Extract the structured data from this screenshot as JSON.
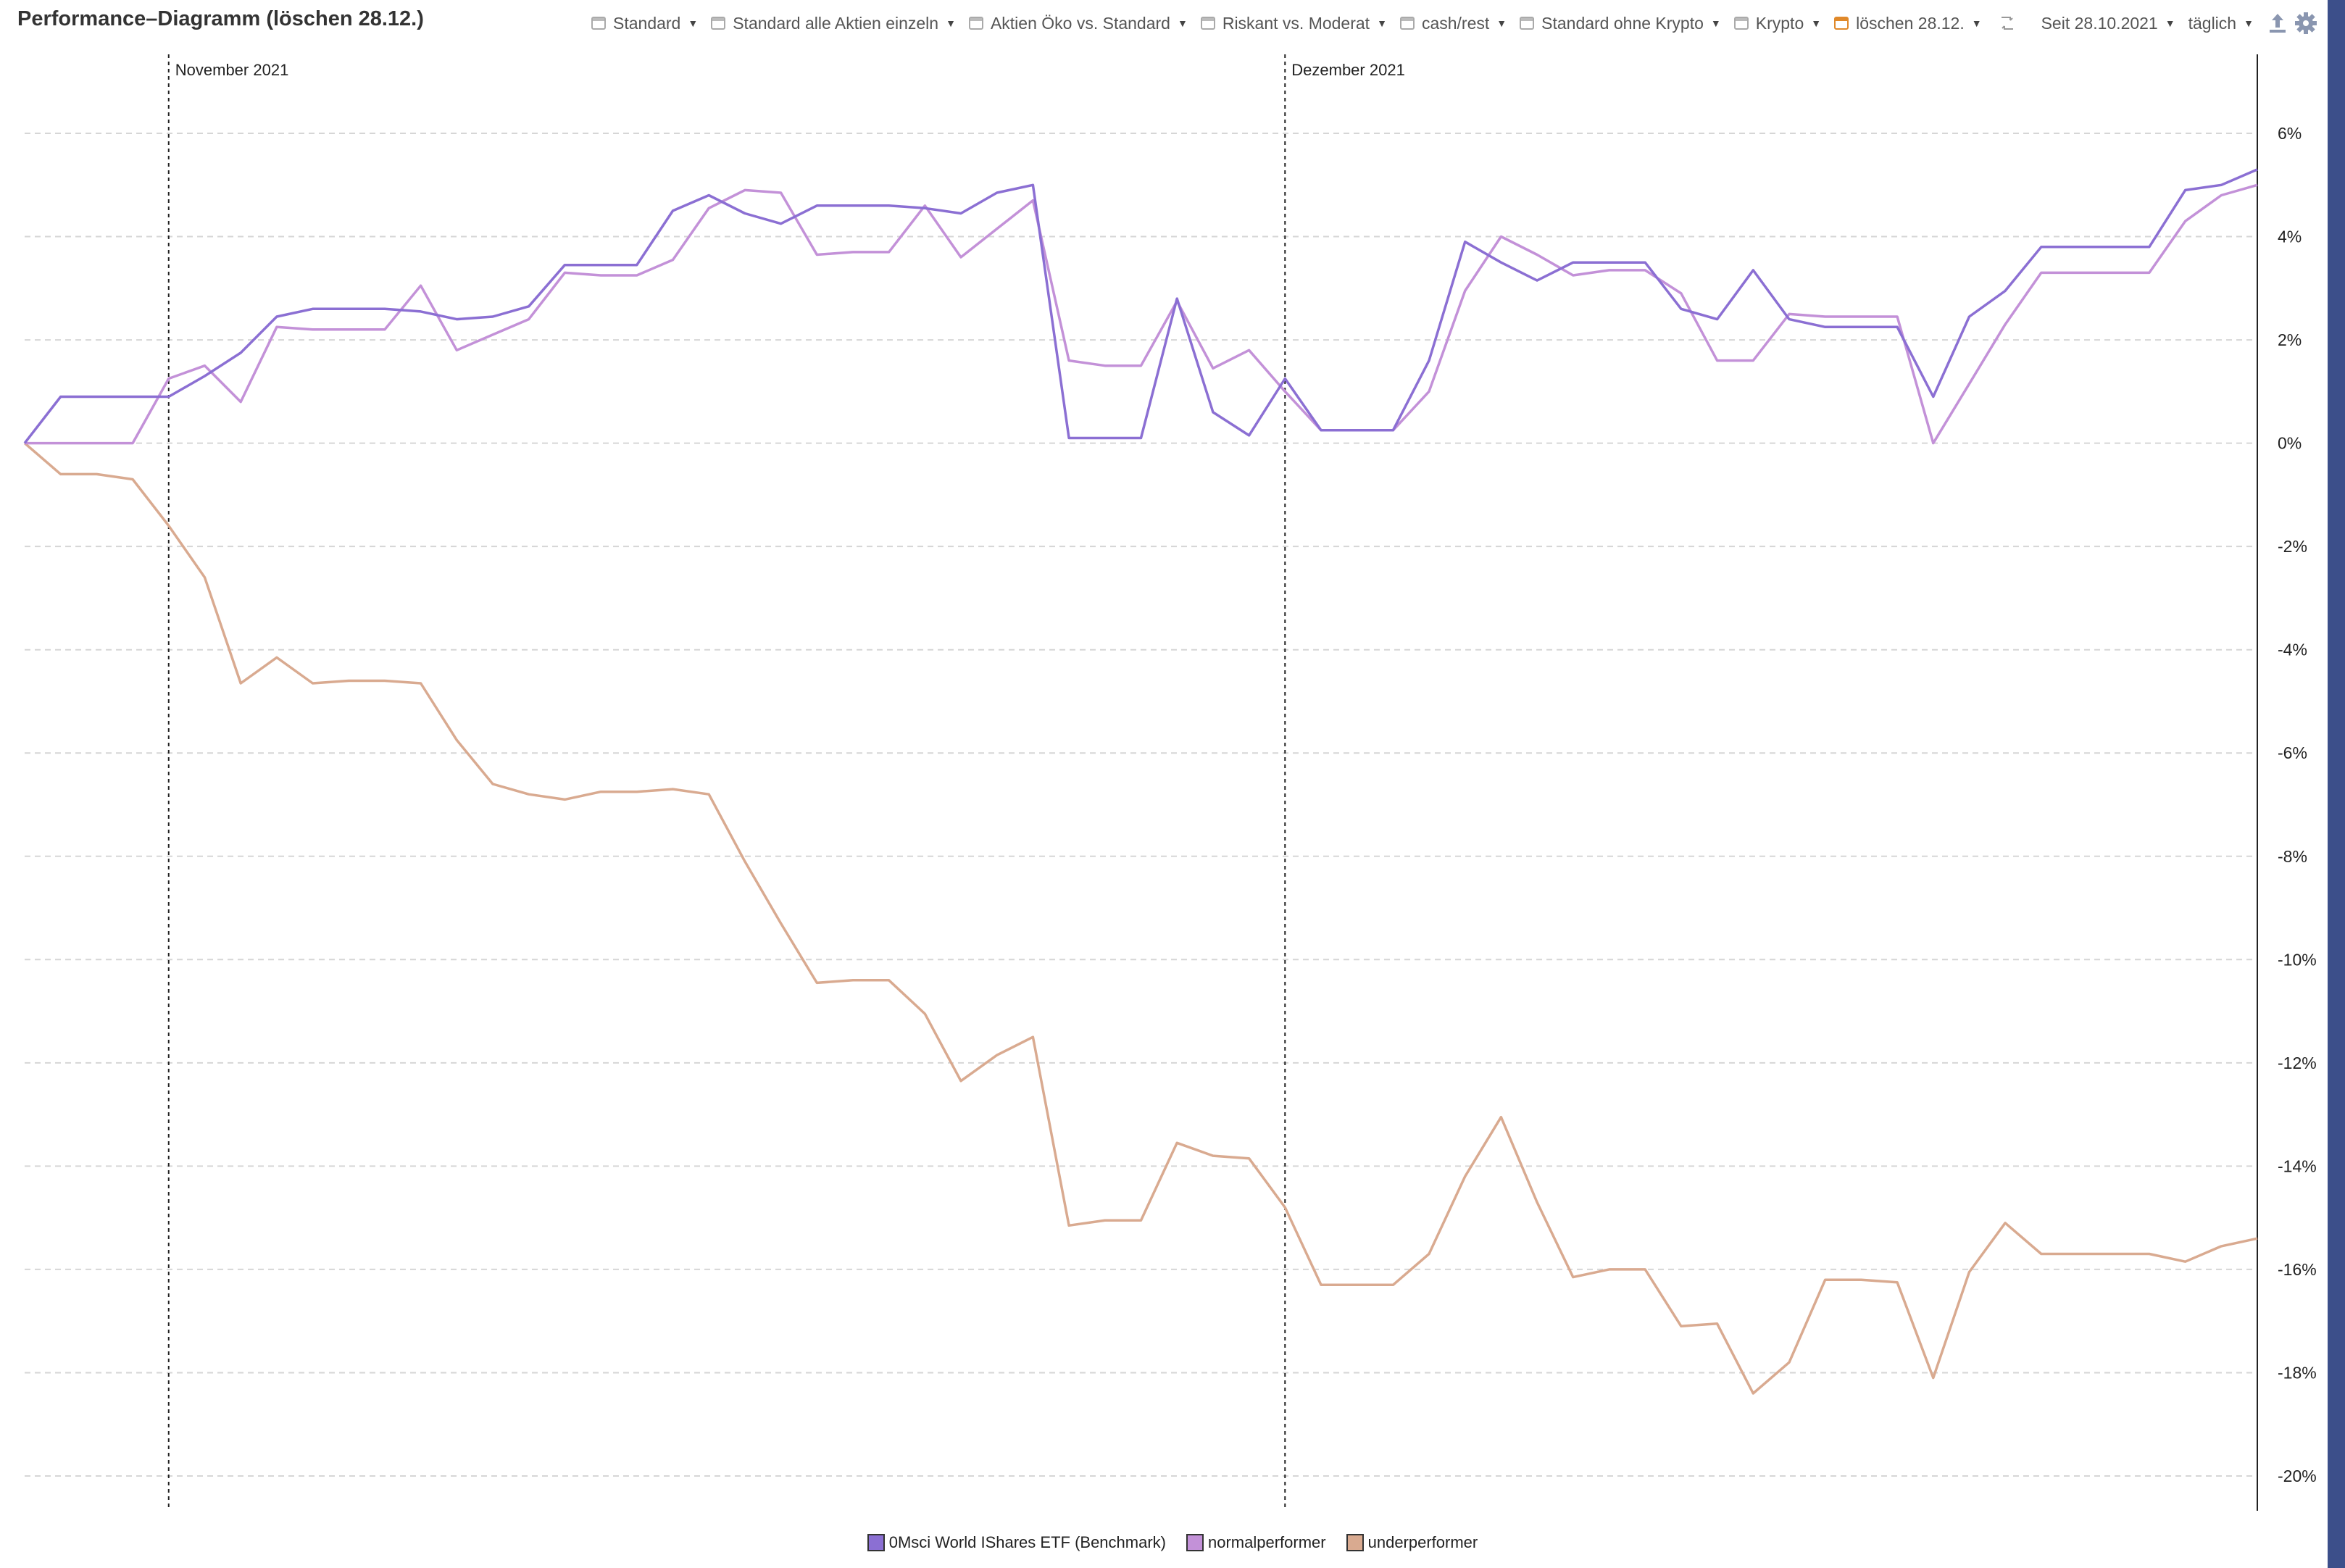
{
  "page": {
    "title": "Performance–Diagramm (löschen 28.12.)"
  },
  "toolbar": {
    "presets": [
      {
        "label": "Standard",
        "highlight": false
      },
      {
        "label": "Standard alle Aktien einzeln",
        "highlight": false
      },
      {
        "label": "Aktien Öko vs. Standard",
        "highlight": false
      },
      {
        "label": "Riskant vs. Moderat",
        "highlight": false
      },
      {
        "label": "cash/rest",
        "highlight": false
      },
      {
        "label": "Standard ohne Krypto",
        "highlight": false
      },
      {
        "label": "Krypto",
        "highlight": false
      },
      {
        "label": "löschen 28.12.",
        "highlight": true
      }
    ],
    "since_label": "Seit 28.10.2021",
    "frequency_label": "täglich",
    "icons": [
      "refresh-icon",
      "export-icon",
      "gear-icon"
    ]
  },
  "colors": {
    "benchmark": "#8b6fd3",
    "normal": "#c391d8",
    "under": "#d9aa90",
    "grid": "#d6d6d6",
    "accent_orange": "#e0892a",
    "sidebar": "#3c4f8a"
  },
  "chart_data": {
    "type": "line",
    "title": "Performance–Diagramm (löschen 28.12.)",
    "xlabel": "",
    "ylabel": "",
    "ylim": [
      -21,
      7.5
    ],
    "yticks": [
      6,
      4,
      2,
      0,
      -2,
      -4,
      -6,
      -8,
      -10,
      -12,
      -14,
      -16,
      -18,
      -20
    ],
    "ytick_format": "{v}%",
    "grid": true,
    "legend_position": "bottom-center",
    "x_count": 63,
    "month_markers": [
      {
        "index": 4,
        "label": "November 2021"
      },
      {
        "index": 35,
        "label": "Dezember 2021"
      }
    ],
    "series": [
      {
        "name": "0Msci World IShares ETF (Benchmark)",
        "color": "#8b6fd3",
        "values": [
          0,
          0.9,
          0.9,
          0.9,
          0.9,
          1.3,
          1.75,
          2.45,
          2.6,
          2.6,
          2.6,
          2.55,
          2.4,
          2.45,
          2.65,
          3.45,
          3.45,
          3.45,
          4.5,
          4.8,
          4.45,
          4.25,
          4.6,
          4.6,
          4.6,
          4.55,
          4.45,
          4.85,
          5.0,
          0.1,
          0.1,
          0.1,
          2.8,
          0.6,
          0.15,
          1.25,
          0.25,
          0.25,
          0.25,
          1.6,
          3.9,
          3.5,
          3.15,
          3.5,
          3.5,
          3.5,
          2.6,
          2.4,
          3.35,
          2.4,
          2.25,
          2.25,
          2.25,
          0.9,
          2.45,
          2.95,
          3.8,
          3.8,
          3.8,
          3.8,
          4.9,
          5.0,
          5.3
        ]
      },
      {
        "name": "normalperformer",
        "color": "#c391d8",
        "values": [
          0,
          0,
          0,
          0,
          1.25,
          1.5,
          0.8,
          2.25,
          2.2,
          2.2,
          2.2,
          3.05,
          1.8,
          2.1,
          2.4,
          3.3,
          3.25,
          3.25,
          3.55,
          4.55,
          4.9,
          4.85,
          3.65,
          3.7,
          3.7,
          4.6,
          3.6,
          4.15,
          4.7,
          1.6,
          1.5,
          1.5,
          2.75,
          1.45,
          1.8,
          1.0,
          0.25,
          0.25,
          0.25,
          1.0,
          2.95,
          4.0,
          3.65,
          3.25,
          3.35,
          3.35,
          2.9,
          1.6,
          1.6,
          2.5,
          2.45,
          2.45,
          2.45,
          0.0,
          1.15,
          2.3,
          3.3,
          3.3,
          3.3,
          3.3,
          4.3,
          4.8,
          5.0
        ]
      },
      {
        "name": "underperformer",
        "color": "#d9aa90",
        "values": [
          0,
          -0.6,
          -0.6,
          -0.7,
          -1.6,
          -2.6,
          -4.65,
          -4.15,
          -4.65,
          -4.6,
          -4.6,
          -4.65,
          -5.75,
          -6.6,
          -6.8,
          -6.9,
          -6.75,
          -6.75,
          -6.7,
          -6.8,
          -8.1,
          -9.3,
          -10.45,
          -10.4,
          -10.4,
          -11.05,
          -12.35,
          -11.85,
          -11.5,
          -15.15,
          -15.05,
          -15.05,
          -13.55,
          -13.8,
          -13.85,
          -14.8,
          -16.3,
          -16.3,
          -16.3,
          -15.7,
          -14.2,
          -13.05,
          -14.7,
          -16.15,
          -16.0,
          -16.0,
          -17.1,
          -17.05,
          -18.4,
          -17.8,
          -16.2,
          -16.2,
          -16.25,
          -18.1,
          -16.05,
          -15.1,
          -15.7,
          -15.7,
          -15.7,
          -15.7,
          -15.85,
          -15.55,
          -15.4
        ]
      }
    ]
  }
}
